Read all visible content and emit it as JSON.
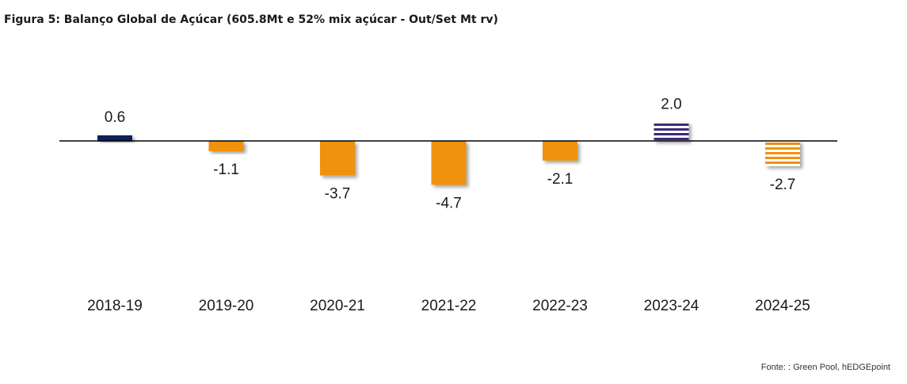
{
  "title": "Figura 5: Balanço Global de Açúcar (605.8Mt e 52% mix açúcar - Out/Set Mt rv)",
  "source": "Fonte: : Green Pool, hEDGEpoint",
  "colors": {
    "negative": "#f0920a",
    "positive_2018": "#0d2458",
    "forecast_positive": "#3a2a7c",
    "axis": "#000000"
  },
  "chart_data": {
    "type": "bar",
    "title": "Figura 5: Balanço Global de Açúcar (605.8Mt e 52% mix açúcar - Out/Set Mt rv)",
    "xlabel": "",
    "ylabel": "",
    "categories": [
      "2018-19",
      "2019-20",
      "2020-21",
      "2021-22",
      "2022-23",
      "2023-24",
      "2024-25"
    ],
    "values": [
      0.6,
      -1.1,
      -3.7,
      -4.7,
      -2.1,
      2.0,
      -2.7
    ],
    "value_labels": [
      "0.6",
      "-1.1",
      "-3.7",
      "-4.7",
      "-2.1",
      "2.0",
      "-2.7"
    ],
    "styles": [
      "solid",
      "solid",
      "solid",
      "solid",
      "solid",
      "striped",
      "striped"
    ],
    "grid": false,
    "legend": "none"
  }
}
